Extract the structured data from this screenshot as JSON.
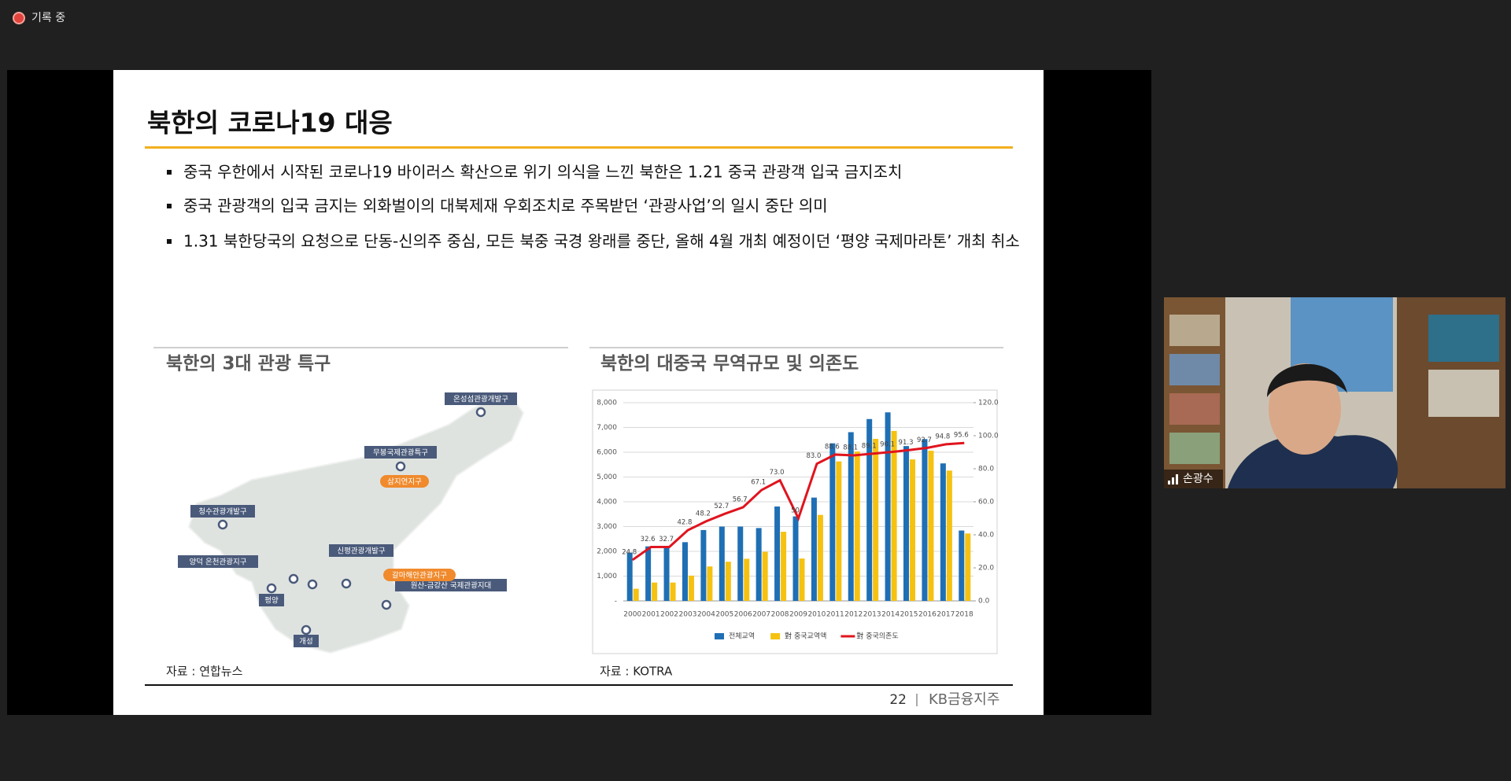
{
  "recording": "기록 중",
  "slide": {
    "title": "북한의 코로나19 대응",
    "bullets": [
      "중국 우한에서 시작된 코로나19 바이러스 확산으로 위기 의식을 느낀 북한은 1.21 중국 관광객 입국 금지조치",
      "중국 관광객의 입국 금지는 외화벌이의 대북제재 우회조치로 주목받던 ‘관광사업’의 일시 중단 의미",
      "1.31 북한당국의 요청으로 단동-신의주 중심, 모든 북중 국경 왕래를 중단, 올해 4월 개최 예정이던 ‘평양 국제마라톤’ 개최 취소"
    ],
    "left_panel": {
      "title": "북한의 3대 관광 특구",
      "map_labels": [
        "온성섬관광개발구",
        "무봉국제관광특구",
        "삼지연지구",
        "청수관광개발구",
        "양덕 온천관광지구",
        "신평관광개발구",
        "평양",
        "원산-금강산 국제관광지대",
        "갈마해안관광지구",
        "개성"
      ],
      "source": "자료 : 연합뉴스"
    },
    "right_panel": {
      "title": "북한의 대중국 무역규모 및 의존도",
      "source": "자료 : KOTRA"
    },
    "page_number": 22,
    "brand": "KB금융지주"
  },
  "chart_data": {
    "type": "bar",
    "categories": [
      "2000",
      "2001",
      "2002",
      "2003",
      "2004",
      "2005",
      "2006",
      "2007",
      "2008",
      "2009",
      "2010",
      "2011",
      "2012",
      "2013",
      "2014",
      "2015",
      "2016",
      "2017",
      "2018"
    ],
    "series": [
      {
        "name": "전체교역",
        "color": "#1f6fb4",
        "values": [
          1950,
          2200,
          2170,
          2370,
          2860,
          3000,
          3000,
          2940,
          3810,
          3410,
          4170,
          6360,
          6810,
          7340,
          7610,
          6250,
          6530,
          5550,
          2840
        ]
      },
      {
        "name": "對 중국교역액",
        "color": "#f5c211",
        "values": [
          490,
          740,
          740,
          1020,
          1390,
          1580,
          1700,
          1980,
          2790,
          1710,
          3470,
          5630,
          6030,
          6540,
          6860,
          5710,
          6060,
          5260,
          2720
        ]
      },
      {
        "name": "對 중국의존도",
        "color": "#e0141e",
        "type": "line",
        "axis": "y2",
        "values": [
          24.8,
          32.6,
          32.7,
          42.8,
          48.2,
          52.7,
          56.7,
          67.1,
          73.0,
          50,
          83.0,
          88.6,
          88.1,
          89.1,
          90.1,
          91.3,
          92.7,
          94.8,
          95.6
        ],
        "value_labels": [
          "24.8",
          "32.6",
          "32.7",
          "42.8",
          "48.2",
          "52.7",
          "56.7",
          "67.1",
          "73.0",
          "50",
          "83.0",
          "88.6",
          "88.1",
          "89.1",
          "90.1",
          "91.3",
          "92.7",
          "94.8",
          "95.6"
        ]
      }
    ],
    "ylim": [
      0,
      8000
    ],
    "yticks": [
      {
        "value": 0,
        "label": "-"
      },
      {
        "value": 1000,
        "label": "1,000"
      },
      {
        "value": 2000,
        "label": "2,000"
      },
      {
        "value": 3000,
        "label": "3,000"
      },
      {
        "value": 4000,
        "label": "4,000"
      },
      {
        "value": 5000,
        "label": "5,000"
      },
      {
        "value": 6000,
        "label": "6,000"
      },
      {
        "value": 7000,
        "label": "7,000"
      },
      {
        "value": 8000,
        "label": "8,000"
      }
    ],
    "y2lim": [
      0,
      120
    ],
    "y2ticks": [
      {
        "value": 0,
        "label": "0.0"
      },
      {
        "value": 20,
        "label": "20.0"
      },
      {
        "value": 40,
        "label": "40.0"
      },
      {
        "value": 60,
        "label": "60.0"
      },
      {
        "value": 80,
        "label": "80.0"
      },
      {
        "value": 100,
        "label": "100.0"
      },
      {
        "value": 120,
        "label": "120.0"
      }
    ],
    "grid": true
  },
  "participant": {
    "name": "손광수"
  }
}
